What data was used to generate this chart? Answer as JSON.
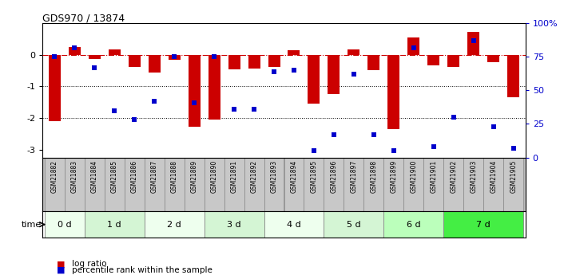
{
  "title": "GDS970 / 13874",
  "samples": [
    "GSM21882",
    "GSM21883",
    "GSM21884",
    "GSM21885",
    "GSM21886",
    "GSM21887",
    "GSM21888",
    "GSM21889",
    "GSM21890",
    "GSM21891",
    "GSM21892",
    "GSM21893",
    "GSM21894",
    "GSM21895",
    "GSM21896",
    "GSM21897",
    "GSM21898",
    "GSM21899",
    "GSM21900",
    "GSM21901",
    "GSM21902",
    "GSM21903",
    "GSM21904",
    "GSM21905"
  ],
  "log_ratio": [
    -2.1,
    0.25,
    -0.12,
    0.18,
    -0.38,
    -0.55,
    -0.15,
    -2.28,
    -2.05,
    -0.45,
    -0.42,
    -0.38,
    0.14,
    -1.55,
    -1.25,
    0.18,
    -0.48,
    -2.35,
    0.55,
    -0.32,
    -0.38,
    0.72,
    -0.22,
    -1.35
  ],
  "percentile_rank": [
    75,
    82,
    67,
    35,
    28,
    42,
    75,
    41,
    75,
    36,
    36,
    64,
    65,
    5,
    17,
    62,
    17,
    5,
    82,
    8,
    30,
    87,
    23,
    7
  ],
  "time_groups": [
    {
      "label": "0 d",
      "start": 0,
      "end": 2
    },
    {
      "label": "1 d",
      "start": 2,
      "end": 5
    },
    {
      "label": "2 d",
      "start": 5,
      "end": 8
    },
    {
      "label": "3 d",
      "start": 8,
      "end": 11
    },
    {
      "label": "4 d",
      "start": 11,
      "end": 14
    },
    {
      "label": "5 d",
      "start": 14,
      "end": 17
    },
    {
      "label": "6 d",
      "start": 17,
      "end": 20
    },
    {
      "label": "7 d",
      "start": 20,
      "end": 24
    }
  ],
  "time_colors": [
    "#eeffee",
    "#d4f5d4",
    "#eeffee",
    "#d4f5d4",
    "#eeffee",
    "#d4f5d4",
    "#bbffbb",
    "#44ee44"
  ],
  "ylim_left": [
    -3.25,
    1.0
  ],
  "ylim_right": [
    0,
    100
  ],
  "bar_color": "#cc0000",
  "dot_color": "#0000cc",
  "bg_color": "#ffffff",
  "label_cell_color": "#c8c8c8",
  "label_cell_border": "#888888",
  "yticks_left": [
    0,
    -1,
    -2,
    -3
  ],
  "yticks_right": [
    0,
    25,
    50,
    75,
    100
  ],
  "ytick_right_labels": [
    "0",
    "25",
    "50",
    "75",
    "100%"
  ],
  "bar_width": 0.6
}
